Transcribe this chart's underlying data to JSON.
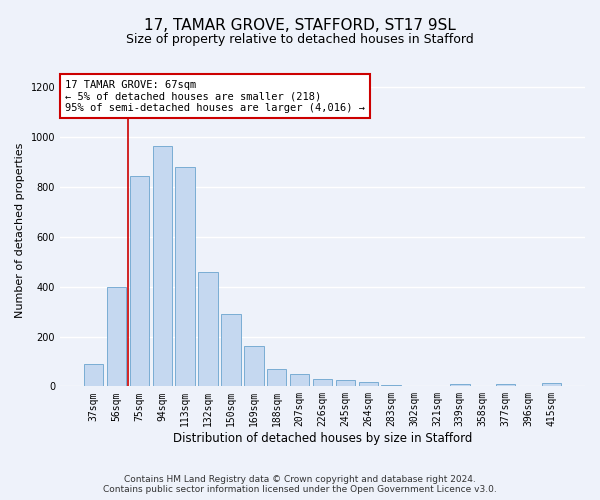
{
  "title1": "17, TAMAR GROVE, STAFFORD, ST17 9SL",
  "title2": "Size of property relative to detached houses in Stafford",
  "xlabel": "Distribution of detached houses by size in Stafford",
  "ylabel": "Number of detached properties",
  "categories": [
    "37sqm",
    "56sqm",
    "75sqm",
    "94sqm",
    "113sqm",
    "132sqm",
    "150sqm",
    "169sqm",
    "188sqm",
    "207sqm",
    "226sqm",
    "245sqm",
    "264sqm",
    "283sqm",
    "302sqm",
    "321sqm",
    "339sqm",
    "358sqm",
    "377sqm",
    "396sqm",
    "415sqm"
  ],
  "values": [
    90,
    400,
    845,
    965,
    880,
    460,
    290,
    163,
    70,
    50,
    30,
    25,
    18,
    5,
    0,
    0,
    10,
    0,
    10,
    0,
    15
  ],
  "bar_color": "#c5d8f0",
  "bar_edge_color": "#7aadd4",
  "vline_x": 1.5,
  "vline_color": "#cc0000",
  "annotation_text": "17 TAMAR GROVE: 67sqm\n← 5% of detached houses are smaller (218)\n95% of semi-detached houses are larger (4,016) →",
  "annotation_box_color": "#ffffff",
  "annotation_box_edge_color": "#cc0000",
  "ylim": [
    0,
    1250
  ],
  "yticks": [
    0,
    200,
    400,
    600,
    800,
    1000,
    1200
  ],
  "footnote1": "Contains HM Land Registry data © Crown copyright and database right 2024.",
  "footnote2": "Contains public sector information licensed under the Open Government Licence v3.0.",
  "background_color": "#eef2fa",
  "grid_color": "#ffffff",
  "title1_fontsize": 11,
  "title2_fontsize": 9,
  "xlabel_fontsize": 8.5,
  "ylabel_fontsize": 8,
  "tick_fontsize": 7,
  "footnote_fontsize": 6.5,
  "annot_fontsize": 7.5
}
